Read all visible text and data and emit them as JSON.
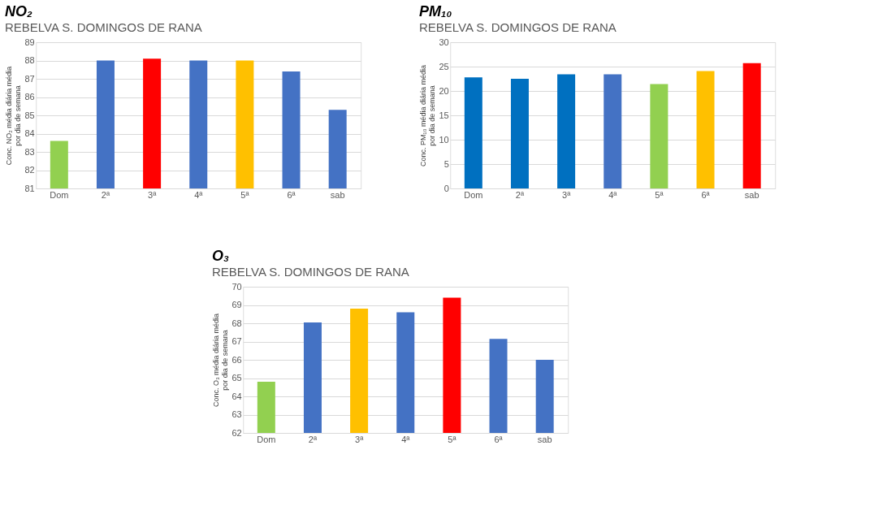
{
  "chart_data": [
    {
      "type": "bar",
      "title": "NO₂",
      "subtitle": "REBELVA S. DOMINGOS DE RANA",
      "ylabel": "Conc. NO₂ média diária média por dia de semana",
      "categories": [
        "Dom",
        "2ª",
        "3ª",
        "4ª",
        "5ª",
        "6ª",
        "sab"
      ],
      "values": [
        83.6,
        88.0,
        88.1,
        88.0,
        88.0,
        87.4,
        85.3
      ],
      "colors": [
        "#92d050",
        "#4472c4",
        "#ff0000",
        "#4472c4",
        "#ffc000",
        "#4472c4",
        "#4472c4"
      ],
      "ylim": [
        81,
        89
      ],
      "yticks": [
        81,
        82,
        83,
        84,
        85,
        86,
        87,
        88,
        89
      ],
      "grid": "y"
    },
    {
      "type": "bar",
      "title": "PM₁₀",
      "subtitle": "REBELVA S. DOMINGOS DE RANA",
      "ylabel": "Conc. PM₁₀ média diária média por dia de semana",
      "categories": [
        "Dom",
        "2ª",
        "3ª",
        "4ª",
        "5ª",
        "6ª",
        "sab"
      ],
      "values": [
        22.8,
        22.5,
        23.4,
        23.4,
        21.4,
        24.1,
        25.7
      ],
      "colors": [
        "#0070c0",
        "#0070c0",
        "#0070c0",
        "#4472c4",
        "#92d050",
        "#ffc000",
        "#ff0000"
      ],
      "ylim": [
        0,
        30
      ],
      "yticks": [
        0,
        5,
        10,
        15,
        20,
        25,
        30
      ],
      "grid": "y"
    },
    {
      "type": "bar",
      "title": "O₃",
      "subtitle": "REBELVA S. DOMINGOS DE RANA",
      "ylabel": "Conc. O₃ média diária média por dia de semana",
      "categories": [
        "Dom",
        "2ª",
        "3ª",
        "4ª",
        "5ª",
        "6ª",
        "sab"
      ],
      "values": [
        64.8,
        68.05,
        68.8,
        68.6,
        69.4,
        67.15,
        66.0
      ],
      "colors": [
        "#92d050",
        "#4472c4",
        "#ffc000",
        "#4472c4",
        "#ff0000",
        "#4472c4",
        "#4472c4"
      ],
      "ylim": [
        62,
        70
      ],
      "yticks": [
        62,
        63,
        64,
        65,
        66,
        67,
        68,
        69,
        70
      ],
      "grid": "y"
    }
  ]
}
